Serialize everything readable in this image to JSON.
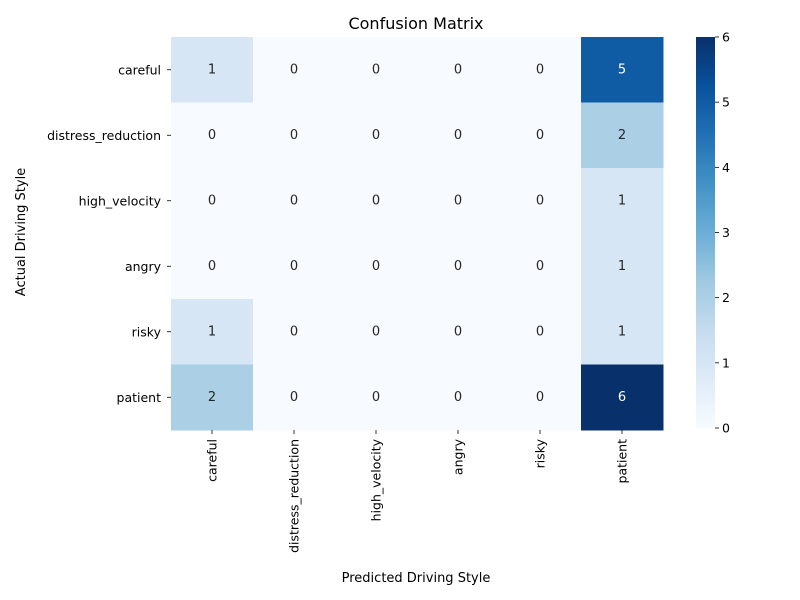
{
  "chart_data": {
    "type": "heatmap",
    "title": "Confusion Matrix",
    "xlabel": "Predicted Driving Style",
    "ylabel": "Actual Driving Style",
    "x_categories": [
      "careful",
      "distress_reduction",
      "high_velocity",
      "angry",
      "risky",
      "patient"
    ],
    "y_categories": [
      "careful",
      "distress_reduction",
      "high_velocity",
      "angry",
      "risky",
      "patient"
    ],
    "values": [
      [
        1,
        0,
        0,
        0,
        0,
        5
      ],
      [
        0,
        0,
        0,
        0,
        0,
        2
      ],
      [
        0,
        0,
        0,
        0,
        0,
        1
      ],
      [
        0,
        0,
        0,
        0,
        0,
        1
      ],
      [
        1,
        0,
        0,
        0,
        0,
        1
      ],
      [
        2,
        0,
        0,
        0,
        0,
        6
      ]
    ],
    "colormap": "Blues",
    "vmin": 0,
    "vmax": 6,
    "colorbar_ticks": [
      "0",
      "1",
      "2",
      "3",
      "4",
      "5",
      "6"
    ],
    "annotated": true
  }
}
